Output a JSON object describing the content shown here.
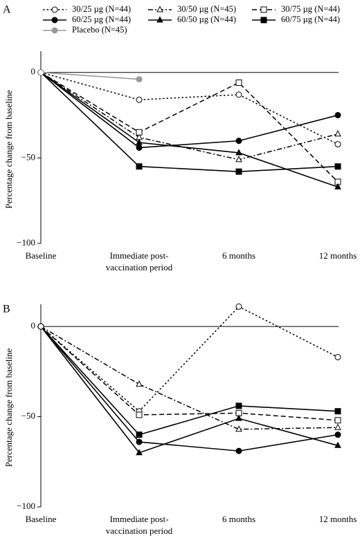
{
  "chart_data": [
    {
      "type": "line",
      "panel_label": "A",
      "ylabel": "Percentage change from baseline",
      "ylim": [
        -100,
        10
      ],
      "yticks": [
        "0",
        "−50",
        "−100"
      ],
      "ytick_values": [
        0,
        -50,
        -100
      ],
      "categories": [
        "Baseline",
        "Immediate post-vaccination period",
        "6 months",
        "12 months"
      ],
      "category_labels": [
        [
          "Baseline"
        ],
        [
          "Immediate post-",
          "vaccination period"
        ],
        [
          "6 months"
        ],
        [
          "12 months"
        ]
      ],
      "legend_position": "top",
      "series": [
        {
          "name": "30/25 µg (N=44)",
          "style": "dotted",
          "marker": "circle-open",
          "color": "#000000",
          "values": [
            0,
            -16,
            -13,
            -42
          ]
        },
        {
          "name": "30/50 µg (N=45)",
          "style": "dash-dot",
          "marker": "triangle-open",
          "color": "#000000",
          "values": [
            0,
            -38,
            -51,
            -36
          ]
        },
        {
          "name": "30/75 µg (N=44)",
          "style": "dashed",
          "marker": "square-open",
          "color": "#000000",
          "values": [
            0,
            -35,
            -6,
            -64
          ]
        },
        {
          "name": "60/25 µg (N=44)",
          "style": "solid",
          "marker": "circle-filled",
          "color": "#000000",
          "values": [
            0,
            -44,
            -40,
            -25
          ]
        },
        {
          "name": "60/50 µg (N=44)",
          "style": "solid",
          "marker": "triangle-filled",
          "color": "#000000",
          "values": [
            0,
            -41,
            -47,
            -67
          ]
        },
        {
          "name": "60/75 µg (N=44)",
          "style": "solid",
          "marker": "square-filled",
          "color": "#000000",
          "values": [
            0,
            -55,
            -58,
            -55
          ]
        },
        {
          "name": "Placebo (N=45)",
          "style": "solid",
          "marker": "circle-filled",
          "color": "#999999",
          "values": [
            0,
            -4,
            null,
            null
          ]
        }
      ]
    },
    {
      "type": "line",
      "panel_label": "B",
      "ylabel": "Percentage change from baseline",
      "ylim": [
        -100,
        10
      ],
      "yticks": [
        "0",
        "−50",
        "−100"
      ],
      "ytick_values": [
        0,
        -50,
        -100
      ],
      "categories": [
        "Baseline",
        "Immediate post-vaccination period",
        "6 months",
        "12 months"
      ],
      "category_labels": [
        [
          "Baseline"
        ],
        [
          "Immediate post-",
          "vaccination period"
        ],
        [
          "6 months"
        ],
        [
          "12 months"
        ]
      ],
      "series": [
        {
          "name": "30/25 µg (N=44)",
          "style": "dotted",
          "marker": "circle-open",
          "color": "#000000",
          "values": [
            0,
            -47,
            11,
            -17
          ]
        },
        {
          "name": "30/50 µg (N=45)",
          "style": "dash-dot",
          "marker": "triangle-open",
          "color": "#000000",
          "values": [
            0,
            -32,
            -57,
            -56
          ]
        },
        {
          "name": "30/75 µg (N=44)",
          "style": "dashed",
          "marker": "square-open",
          "color": "#000000",
          "values": [
            0,
            -49,
            -48,
            -52
          ]
        },
        {
          "name": "60/25 µg (N=44)",
          "style": "solid",
          "marker": "circle-filled",
          "color": "#000000",
          "values": [
            0,
            -64,
            -69,
            -60
          ]
        },
        {
          "name": "60/50 µg (N=44)",
          "style": "solid",
          "marker": "triangle-filled",
          "color": "#000000",
          "values": [
            0,
            -70,
            -51,
            -66
          ]
        },
        {
          "name": "60/75 µg (N=44)",
          "style": "solid",
          "marker": "square-filled",
          "color": "#000000",
          "values": [
            0,
            -60,
            -44,
            -47
          ]
        }
      ]
    }
  ]
}
